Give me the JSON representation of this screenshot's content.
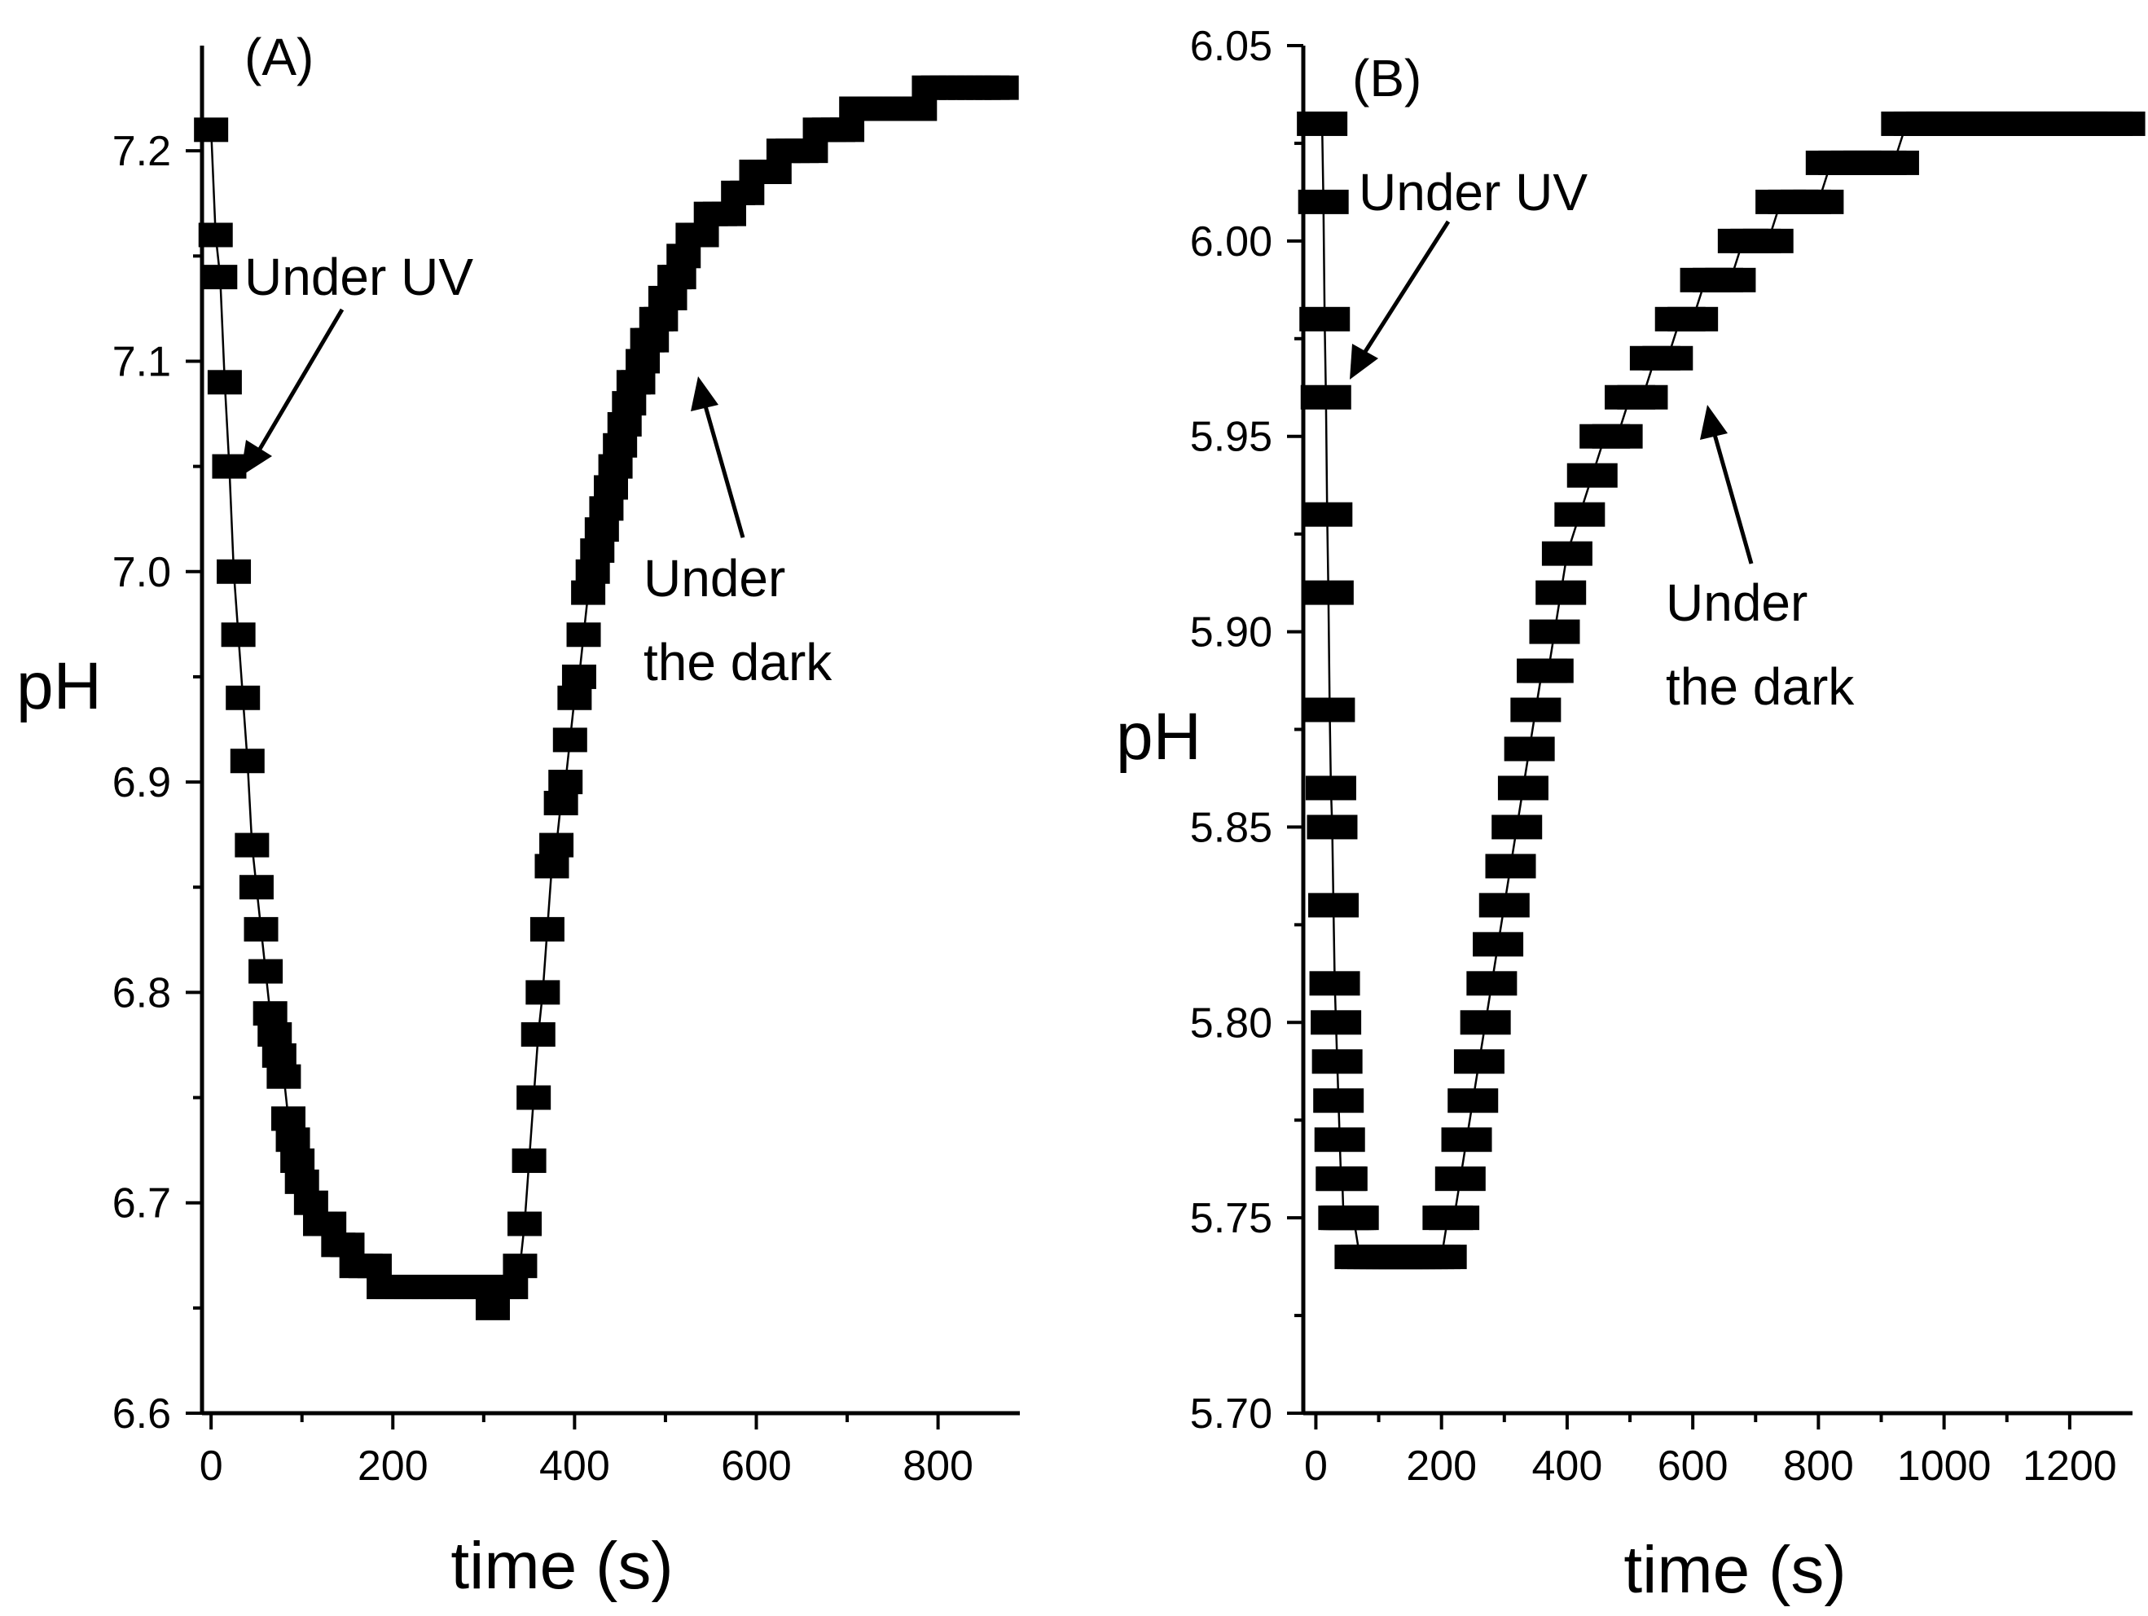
{
  "chart_data": [
    {
      "type": "scatter",
      "panel_label": "(A)",
      "xlabel": "time (s)",
      "ylabel": "pH",
      "xlim": [
        -10,
        890
      ],
      "ylim": [
        6.6,
        7.25
      ],
      "xticks": [
        "0",
        "200",
        "400",
        "600",
        "800"
      ],
      "yticks": [
        "6.6",
        "6.7",
        "6.8",
        "6.9",
        "7.0",
        "7.1",
        "7.2"
      ],
      "annotations": [
        {
          "id": "uv",
          "text": "Under UV"
        },
        {
          "id": "dark1",
          "text": "Under"
        },
        {
          "id": "dark2",
          "text": "the dark"
        }
      ],
      "series": [
        {
          "name": "pH",
          "x": [
            0,
            5,
            10,
            15,
            20,
            25,
            30,
            35,
            40,
            45,
            50,
            55,
            60,
            65,
            70,
            75,
            80,
            85,
            90,
            95,
            100,
            110,
            120,
            130,
            140,
            150,
            160,
            170,
            180,
            190,
            200,
            210,
            220,
            230,
            240,
            250,
            260,
            270,
            280,
            290,
            300,
            310,
            320,
            330,
            340,
            345,
            350,
            355,
            360,
            365,
            370,
            375,
            380,
            385,
            390,
            395,
            400,
            405,
            410,
            415,
            420,
            425,
            430,
            435,
            440,
            445,
            450,
            455,
            460,
            465,
            470,
            475,
            480,
            485,
            490,
            495,
            500,
            505,
            510,
            515,
            520,
            530,
            540,
            550,
            560,
            570,
            580,
            590,
            600,
            610,
            620,
            630,
            640,
            650,
            660,
            670,
            680,
            690,
            700,
            710,
            720,
            730,
            740,
            750,
            760,
            770,
            780,
            790,
            800,
            810,
            820,
            830,
            840,
            850,
            860,
            870
          ],
          "y": [
            7.21,
            7.16,
            7.14,
            7.09,
            7.05,
            7.0,
            6.97,
            6.94,
            6.91,
            6.87,
            6.85,
            6.83,
            6.81,
            6.79,
            6.78,
            6.77,
            6.76,
            6.74,
            6.73,
            6.72,
            6.71,
            6.7,
            6.69,
            6.69,
            6.68,
            6.68,
            6.67,
            6.67,
            6.67,
            6.66,
            6.66,
            6.66,
            6.66,
            6.66,
            6.66,
            6.66,
            6.66,
            6.66,
            6.66,
            6.66,
            6.66,
            6.65,
            6.66,
            6.66,
            6.67,
            6.69,
            6.72,
            6.75,
            6.78,
            6.8,
            6.83,
            6.86,
            6.87,
            6.89,
            6.9,
            6.92,
            6.94,
            6.95,
            6.97,
            6.99,
            7.0,
            7.01,
            7.02,
            7.03,
            7.04,
            7.05,
            7.06,
            7.07,
            7.08,
            7.09,
            7.09,
            7.1,
            7.11,
            7.11,
            7.12,
            7.12,
            7.13,
            7.13,
            7.14,
            7.14,
            7.15,
            7.16,
            7.16,
            7.17,
            7.17,
            7.17,
            7.18,
            7.18,
            7.19,
            7.19,
            7.19,
            7.2,
            7.2,
            7.2,
            7.2,
            7.21,
            7.21,
            7.21,
            7.21,
            7.22,
            7.22,
            7.22,
            7.22,
            7.22,
            7.22,
            7.22,
            7.22,
            7.23,
            7.23,
            7.23,
            7.23,
            7.23,
            7.23,
            7.23,
            7.23,
            7.23
          ]
        }
      ]
    },
    {
      "type": "scatter",
      "panel_label": "(B)",
      "xlabel": "time (s)",
      "ylabel": "pH",
      "xlim": [
        -20,
        1300
      ],
      "ylim": [
        5.7,
        6.05
      ],
      "xticks": [
        "0",
        "200",
        "400",
        "600",
        "800",
        "1000",
        "1200"
      ],
      "yticks": [
        "5.70",
        "5.75",
        "5.80",
        "5.85",
        "5.90",
        "5.95",
        "6.00",
        "6.05"
      ],
      "annotations": [
        {
          "id": "uv",
          "text": "Under UV"
        },
        {
          "id": "dark1",
          "text": "Under"
        },
        {
          "id": "dark2",
          "text": "the dark"
        }
      ],
      "series": [
        {
          "name": "pH",
          "x": [
            10,
            12,
            14,
            16,
            18,
            20,
            22,
            24,
            26,
            28,
            30,
            32,
            34,
            36,
            38,
            40,
            42,
            44,
            48,
            52,
            56,
            60,
            70,
            80,
            90,
            100,
            110,
            120,
            130,
            140,
            150,
            160,
            170,
            180,
            190,
            200,
            210,
            220,
            230,
            240,
            250,
            260,
            270,
            280,
            290,
            300,
            310,
            320,
            330,
            340,
            350,
            360,
            370,
            380,
            390,
            400,
            420,
            440,
            460,
            480,
            500,
            520,
            540,
            560,
            580,
            600,
            620,
            640,
            660,
            680,
            700,
            720,
            740,
            760,
            780,
            800,
            820,
            840,
            860,
            880,
            900,
            920,
            940,
            960,
            980,
            1000,
            1020,
            1040,
            1060,
            1080,
            1100,
            1120,
            1140,
            1160,
            1180,
            1200,
            1220,
            1240,
            1260,
            1280
          ],
          "y": [
            6.03,
            6.01,
            5.98,
            5.96,
            5.93,
            5.91,
            5.88,
            5.86,
            5.85,
            5.83,
            5.81,
            5.8,
            5.79,
            5.78,
            5.77,
            5.76,
            5.76,
            5.75,
            5.75,
            5.75,
            5.75,
            5.75,
            5.74,
            5.74,
            5.74,
            5.74,
            5.74,
            5.74,
            5.74,
            5.74,
            5.74,
            5.74,
            5.74,
            5.74,
            5.74,
            5.74,
            5.75,
            5.75,
            5.76,
            5.77,
            5.78,
            5.79,
            5.8,
            5.81,
            5.82,
            5.83,
            5.84,
            5.85,
            5.86,
            5.87,
            5.88,
            5.89,
            5.89,
            5.9,
            5.91,
            5.92,
            5.93,
            5.94,
            5.95,
            5.95,
            5.96,
            5.96,
            5.97,
            5.97,
            5.98,
            5.98,
            5.99,
            5.99,
            5.99,
            6.0,
            6.0,
            6.0,
            6.01,
            6.01,
            6.01,
            6.01,
            6.02,
            6.02,
            6.02,
            6.02,
            6.02,
            6.02,
            6.03,
            6.03,
            6.03,
            6.03,
            6.03,
            6.03,
            6.03,
            6.03,
            6.03,
            6.03,
            6.03,
            6.03,
            6.03,
            6.03,
            6.03,
            6.03,
            6.03,
            6.03
          ]
        }
      ]
    }
  ]
}
